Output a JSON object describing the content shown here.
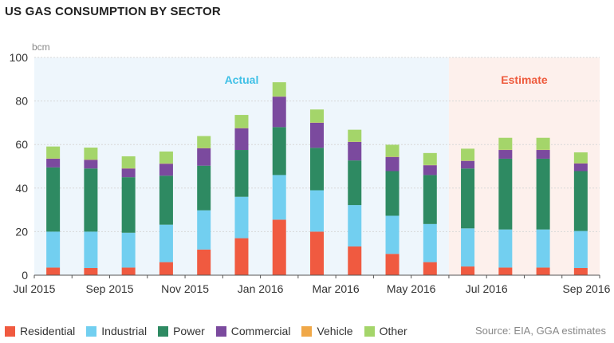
{
  "title": "US GAS CONSUMPTION BY SECTOR",
  "source": "Source: EIA, GGA estimates",
  "chart_data": {
    "type": "bar",
    "stacked": true,
    "unit": "bcm",
    "ylim": [
      0,
      100
    ],
    "yticks": [
      0,
      20,
      40,
      60,
      80,
      100
    ],
    "grid": true,
    "legend_position": "bottom",
    "categories": [
      "Jul 2015",
      "Aug 2015",
      "Sep 2015",
      "Oct 2015",
      "Nov 2015",
      "Dec 2015",
      "Jan 2016",
      "Feb 2016",
      "Mar 2016",
      "Apr 2016",
      "May 2016",
      "Jun 2016",
      "Jul 2016",
      "Aug 2016",
      "Sep 2016"
    ],
    "xtick_labels": [
      "Jul 2015",
      "",
      "Sep 2015",
      "",
      "Nov 2015",
      "",
      "Jan 2016",
      "",
      "Mar 2016",
      "",
      "May 2016",
      "",
      "Jul 2016",
      "",
      "Sep 2016"
    ],
    "bands": [
      {
        "label": "Actual",
        "from": 0,
        "to": 10,
        "color": "#eef6fc",
        "text_color": "#3fc0e6"
      },
      {
        "label": "Estimate",
        "from": 11,
        "to": 14,
        "color": "#fdf0ec",
        "text_color": "#ee5a3c"
      }
    ],
    "series": [
      {
        "name": "Residential",
        "color": "#f05a40",
        "values": [
          3.5,
          3.3,
          3.5,
          6.0,
          11.8,
          17.0,
          25.5,
          20.0,
          13.2,
          9.8,
          6.0,
          4.0,
          3.5,
          3.5,
          3.3
        ]
      },
      {
        "name": "Industrial",
        "color": "#72cff0",
        "values": [
          16.5,
          16.7,
          16.0,
          17.2,
          18.0,
          19.0,
          20.5,
          19.0,
          19.0,
          17.5,
          17.5,
          17.5,
          17.5,
          17.5,
          17.0
        ]
      },
      {
        "name": "Power",
        "color": "#2e8a62",
        "values": [
          29.5,
          29.0,
          25.5,
          22.5,
          20.5,
          21.5,
          22.0,
          19.5,
          20.5,
          20.5,
          22.5,
          27.5,
          32.5,
          32.5,
          27.5
        ]
      },
      {
        "name": "Commercial",
        "color": "#7b4a9e",
        "values": [
          4.0,
          4.0,
          4.0,
          5.5,
          8.0,
          10.0,
          14.0,
          11.5,
          8.5,
          6.5,
          4.5,
          3.5,
          4.0,
          4.0,
          3.5
        ]
      },
      {
        "name": "Vehicle",
        "color": "#f0a848",
        "values": [
          0.1,
          0.1,
          0.1,
          0.1,
          0.1,
          0.1,
          0.1,
          0.1,
          0.1,
          0.1,
          0.1,
          0.1,
          0.1,
          0.1,
          0.1
        ]
      },
      {
        "name": "Other",
        "color": "#a4d56a",
        "values": [
          5.5,
          5.5,
          5.5,
          5.5,
          5.5,
          6.0,
          6.5,
          6.0,
          5.5,
          5.5,
          5.5,
          5.5,
          5.5,
          5.5,
          5.0
        ]
      }
    ]
  }
}
